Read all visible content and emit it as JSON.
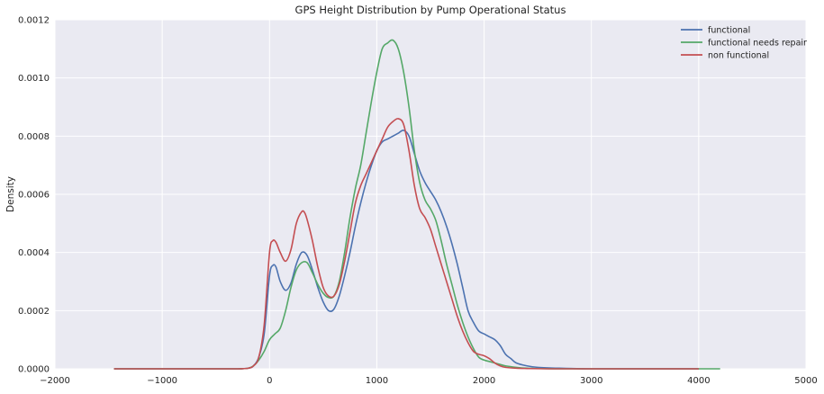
{
  "chart_data": {
    "type": "line",
    "title": "GPS Height Distribution by Pump Operational Status",
    "xlabel": "",
    "ylabel": "Density",
    "xlim": [
      -2000,
      5000
    ],
    "ylim": [
      0,
      0.0012
    ],
    "x_ticks": [
      -2000,
      -1000,
      0,
      1000,
      2000,
      3000,
      4000,
      5000
    ],
    "x_tick_labels": [
      "−2000",
      "−1000",
      "0",
      "1000",
      "2000",
      "3000",
      "4000",
      "5000"
    ],
    "y_ticks": [
      0,
      0.0002,
      0.0004,
      0.0006,
      0.0008,
      0.001,
      0.0012
    ],
    "y_tick_labels": [
      "0.0000",
      "0.0002",
      "0.0004",
      "0.0006",
      "0.0008",
      "0.0010",
      "0.0012"
    ],
    "grid": true,
    "legend_position": "top-right",
    "series": [
      {
        "name": "functional",
        "color": "#4c72b0",
        "x": [
          -1450,
          -600,
          -300,
          -200,
          -150,
          -100,
          -50,
          0,
          30,
          60,
          100,
          150,
          200,
          250,
          300,
          350,
          400,
          450,
          500,
          550,
          600,
          650,
          700,
          750,
          800,
          850,
          900,
          950,
          1000,
          1050,
          1100,
          1150,
          1200,
          1250,
          1300,
          1350,
          1400,
          1450,
          1500,
          1550,
          1600,
          1650,
          1700,
          1750,
          1800,
          1850,
          1900,
          1950,
          2000,
          2050,
          2100,
          2150,
          2200,
          2250,
          2300,
          2400,
          2500,
          2700,
          3000,
          3500,
          4000
        ],
        "y": [
          0,
          0,
          0,
          2e-06,
          1e-05,
          4e-05,
          0.00012,
          0.00032,
          0.000355,
          0.00035,
          0.0003,
          0.00027,
          0.000295,
          0.00036,
          0.0004,
          0.00039,
          0.00034,
          0.00028,
          0.00023,
          0.0002,
          0.000205,
          0.00025,
          0.00032,
          0.0004,
          0.00049,
          0.00057,
          0.00064,
          0.0007,
          0.00075,
          0.00078,
          0.00079,
          0.0008,
          0.00081,
          0.00082,
          0.0008,
          0.00074,
          0.00068,
          0.00064,
          0.00061,
          0.00058,
          0.00054,
          0.00049,
          0.00043,
          0.00036,
          0.00028,
          0.0002,
          0.00016,
          0.00013,
          0.00012,
          0.00011,
          0.0001,
          8e-05,
          5e-05,
          3.5e-05,
          2e-05,
          1e-05,
          5e-06,
          2e-06,
          0,
          0,
          0
        ]
      },
      {
        "name": "functional needs repair",
        "color": "#55a868",
        "x": [
          -1450,
          -600,
          -300,
          -200,
          -150,
          -100,
          -50,
          0,
          50,
          100,
          150,
          200,
          250,
          300,
          350,
          400,
          450,
          500,
          550,
          600,
          650,
          700,
          750,
          800,
          850,
          900,
          950,
          1000,
          1050,
          1100,
          1150,
          1200,
          1250,
          1300,
          1350,
          1400,
          1450,
          1500,
          1550,
          1600,
          1650,
          1700,
          1750,
          1800,
          1850,
          1900,
          1950,
          2000,
          2050,
          2100,
          2150,
          2200,
          2300,
          2400,
          2500,
          2700,
          3000,
          3500,
          4000,
          4200
        ],
        "y": [
          0,
          0,
          0,
          2e-06,
          1e-05,
          3e-05,
          6e-05,
          0.0001,
          0.00012,
          0.00014,
          0.0002,
          0.00028,
          0.00034,
          0.000365,
          0.000365,
          0.00033,
          0.00029,
          0.00026,
          0.000245,
          0.00025,
          0.0003,
          0.0004,
          0.00052,
          0.00062,
          0.0007,
          0.00081,
          0.00092,
          0.00102,
          0.0011,
          0.00112,
          0.00113,
          0.0011,
          0.00102,
          0.0009,
          0.00075,
          0.00064,
          0.00058,
          0.00055,
          0.00051,
          0.00044,
          0.00036,
          0.00029,
          0.00022,
          0.00016,
          0.00011,
          7e-05,
          4e-05,
          3e-05,
          2.5e-05,
          2e-05,
          1.5e-05,
          1e-05,
          5e-06,
          2e-06,
          1e-06,
          0,
          0,
          0,
          0,
          0
        ]
      },
      {
        "name": "non functional",
        "color": "#c44e52",
        "x": [
          -1450,
          -600,
          -300,
          -200,
          -150,
          -100,
          -50,
          0,
          30,
          60,
          100,
          150,
          200,
          250,
          300,
          330,
          360,
          400,
          450,
          500,
          550,
          600,
          650,
          700,
          750,
          800,
          850,
          900,
          950,
          1000,
          1050,
          1100,
          1150,
          1200,
          1250,
          1300,
          1350,
          1400,
          1450,
          1500,
          1550,
          1600,
          1650,
          1700,
          1750,
          1800,
          1850,
          1900,
          1950,
          2000,
          2050,
          2100,
          2150,
          2200,
          2300,
          2400,
          2600,
          3000,
          3500,
          4000
        ],
        "y": [
          0,
          0,
          0,
          2e-06,
          1e-05,
          4e-05,
          0.00015,
          0.0004,
          0.00044,
          0.000435,
          0.0004,
          0.00037,
          0.00041,
          0.0005,
          0.00054,
          0.000535,
          0.0005,
          0.00044,
          0.00035,
          0.00028,
          0.00025,
          0.00025,
          0.00029,
          0.00037,
          0.00047,
          0.00057,
          0.00063,
          0.00067,
          0.00071,
          0.00075,
          0.00079,
          0.00083,
          0.00085,
          0.00086,
          0.00084,
          0.00075,
          0.00063,
          0.00055,
          0.00052,
          0.00048,
          0.00042,
          0.00036,
          0.0003,
          0.00024,
          0.00018,
          0.00013,
          9e-05,
          6e-05,
          5e-05,
          4.5e-05,
          3.5e-05,
          2e-05,
          1e-05,
          5e-06,
          2e-06,
          1e-06,
          0,
          0,
          0,
          0
        ]
      }
    ]
  }
}
